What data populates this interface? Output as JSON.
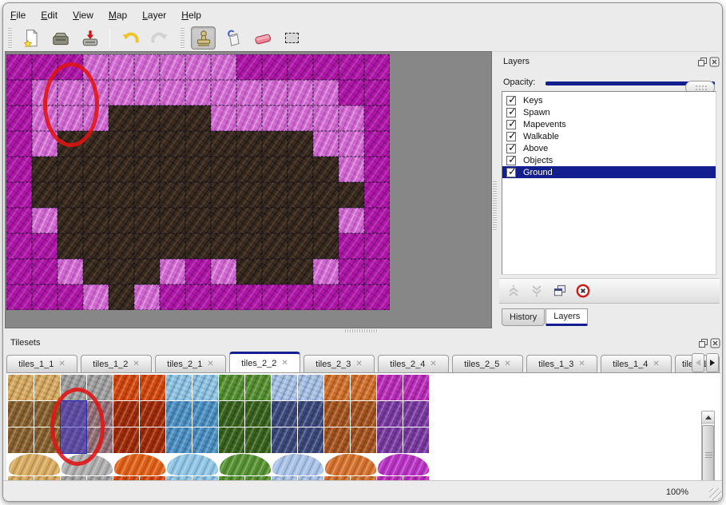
{
  "menu_bar": {
    "items": [
      {
        "label": "File"
      },
      {
        "label": "Edit"
      },
      {
        "label": "View"
      },
      {
        "label": "Map"
      },
      {
        "label": "Layer"
      },
      {
        "label": "Help"
      }
    ]
  },
  "toolbar": {
    "tools": [
      {
        "name": "new-file"
      },
      {
        "name": "open"
      },
      {
        "name": "save"
      },
      {
        "name": "undo"
      },
      {
        "name": "redo"
      },
      {
        "name": "stamp",
        "active": true
      },
      {
        "name": "fill"
      },
      {
        "name": "eraser"
      },
      {
        "name": "rect-select"
      }
    ]
  },
  "map_editor": {
    "columns": 15,
    "rows": 10,
    "tile_size": 32,
    "tile_colors": {
      "M": "#b217ab",
      "P": "#cf63cf",
      "B": "#3a2c21"
    },
    "tile_legend": {
      "M": "magenta-rock",
      "P": "light-pink-rock",
      "B": "dark-brown-cave"
    },
    "grid": [
      "MMMPPPPPPMMMMMM",
      "MPPPPPPPPPPPPMM",
      "MPPPBBBBPPPPPPM",
      "MPBBBBBBBBBBPPM",
      "MBBBBBBBBBBBBPM",
      "MBBBBBBBBBBBBBM",
      "MPBBBBBBBBBBBPM",
      "MMBBBBBBBBBBBMM",
      "MMPBBBPMPBBBPMM",
      "MMMPBPMMMMMMMMM"
    ],
    "annotation": {
      "shape": "ellipse",
      "color": "#e01313"
    }
  },
  "layers_panel": {
    "title": "Layers",
    "opacity_label": "Opacity:",
    "opacity_percent": 100,
    "layers": [
      {
        "name": "Keys",
        "checked": true
      },
      {
        "name": "Spawn",
        "checked": true
      },
      {
        "name": "Mapevents",
        "checked": true
      },
      {
        "name": "Walkable",
        "checked": true
      },
      {
        "name": "Above",
        "checked": true
      },
      {
        "name": "Objects",
        "checked": true
      },
      {
        "name": "Ground",
        "checked": true,
        "selected": true
      }
    ],
    "buttons": [
      "raise-layer",
      "lower-layer",
      "duplicate-layer",
      "delete-layer"
    ],
    "tabs": [
      {
        "label": "History",
        "active": false
      },
      {
        "label": "Layers",
        "active": true
      }
    ]
  },
  "tilesets_panel": {
    "title": "Tilesets",
    "tabs": [
      {
        "label": "tiles_1_1"
      },
      {
        "label": "tiles_1_2"
      },
      {
        "label": "tiles_2_1"
      },
      {
        "label": "tiles_2_2",
        "active": true
      },
      {
        "label": "tiles_2_3"
      },
      {
        "label": "tiles_2_4"
      },
      {
        "label": "tiles_2_5"
      },
      {
        "label": "tiles_1_3"
      },
      {
        "label": "tiles_1_4"
      },
      {
        "label": "tiles_1_",
        "clipped": true
      }
    ],
    "families": [
      {
        "name": "sand",
        "light": "#d9ab61",
        "dark": "#8a6331",
        "blob": "#d9ab61"
      },
      {
        "name": "stone",
        "light": "#a3a3a3",
        "dark": "#96737a",
        "blob": "#aeaeae"
      },
      {
        "name": "lava",
        "light": "#d8490f",
        "dark": "#a42c08",
        "blob": "#df5f16"
      },
      {
        "name": "water",
        "light": "#8fc6e6",
        "dark": "#4d92c6",
        "blob": "#8fc6e6"
      },
      {
        "name": "vines",
        "light": "#569231",
        "dark": "#39641d",
        "blob": "#569231"
      },
      {
        "name": "crystal",
        "light": "#a9c3e8",
        "dark": "#3d4a7e",
        "blob": "#a9c3e8"
      },
      {
        "name": "pebble",
        "light": "#d4712d",
        "dark": "#a8551f",
        "blob": "#d4712d"
      },
      {
        "name": "web",
        "light": "#bd2cbd",
        "dark": "#7c3ba4",
        "blob": "#b832c4"
      }
    ],
    "selected_tile": {
      "column": 2,
      "rows": [
        1,
        2
      ]
    },
    "annotation": {
      "shape": "ellipse",
      "color": "#e01313"
    }
  },
  "status_bar": {
    "zoom": "100%"
  },
  "colors": {
    "accent_navy": "#131f8e",
    "window_bg": "#ebebeb",
    "viewport_bg": "#878787",
    "annotation_red": "#e01313",
    "selection_blue": "#2a2ab2"
  }
}
